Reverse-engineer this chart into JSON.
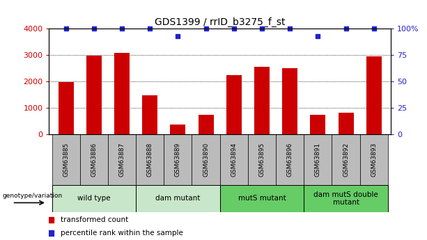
{
  "title": "GDS1399 / rrID_b3275_f_st",
  "samples": [
    "GSM63885",
    "GSM63886",
    "GSM63887",
    "GSM63888",
    "GSM63889",
    "GSM63890",
    "GSM63894",
    "GSM63895",
    "GSM63896",
    "GSM63891",
    "GSM63892",
    "GSM63893"
  ],
  "transformed_counts": [
    1970,
    2970,
    3100,
    1480,
    380,
    750,
    2250,
    2560,
    2520,
    750,
    830,
    2960
  ],
  "percentile_ranks": [
    100,
    100,
    100,
    100,
    93,
    100,
    100,
    100,
    100,
    93,
    100,
    100
  ],
  "groups": [
    {
      "label": "wild type",
      "start": 0,
      "end": 3,
      "color": "#c8e6c9"
    },
    {
      "label": "dam mutant",
      "start": 3,
      "end": 6,
      "color": "#c8e6c9"
    },
    {
      "label": "mutS mutant",
      "start": 6,
      "end": 9,
      "color": "#66cc66"
    },
    {
      "label": "dam mutS double\nmutant",
      "start": 9,
      "end": 12,
      "color": "#66cc66"
    }
  ],
  "bar_color": "#cc0000",
  "dot_color": "#2222cc",
  "ylim_left": [
    0,
    4000
  ],
  "ylim_right": [
    0,
    100
  ],
  "yticks_left": [
    0,
    1000,
    2000,
    3000,
    4000
  ],
  "ytick_labels_left": [
    "0",
    "1000",
    "2000",
    "3000",
    "4000"
  ],
  "yticks_right": [
    0,
    25,
    50,
    75,
    100
  ],
  "ytick_labels_right": [
    "0",
    "25",
    "50",
    "75",
    "100%"
  ],
  "tick_cell_color": "#bbbbbb",
  "legend_items": [
    {
      "color": "#cc0000",
      "label": "transformed count"
    },
    {
      "color": "#2222cc",
      "label": "percentile rank within the sample"
    }
  ]
}
